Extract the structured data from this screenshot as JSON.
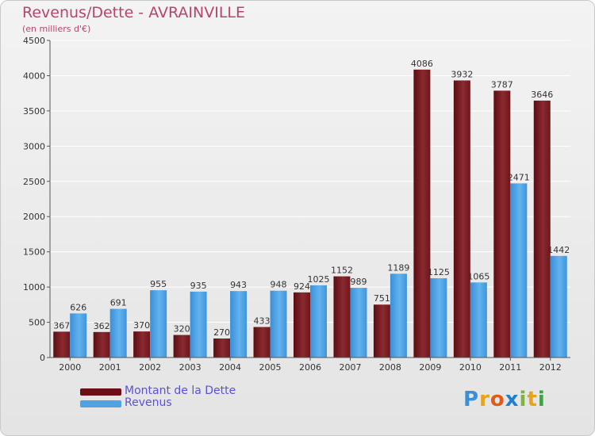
{
  "title": "Revenus/Dette - AVRAINVILLE",
  "subtitle": "(en milliers d'€)",
  "chart_data": {
    "type": "bar",
    "categories": [
      "2000",
      "2001",
      "2002",
      "2003",
      "2004",
      "2005",
      "2006",
      "2007",
      "2008",
      "2009",
      "2010",
      "2011",
      "2012"
    ],
    "series": [
      {
        "name": "Montant de la Dette",
        "color": "#7a1e24",
        "values": [
          367,
          362,
          370,
          320,
          270,
          433,
          924,
          1152,
          751,
          4086,
          3932,
          3787,
          3646
        ]
      },
      {
        "name": "Revenus",
        "color": "#4fa3e3",
        "values": [
          626,
          691,
          955,
          935,
          943,
          948,
          1025,
          989,
          1189,
          1125,
          1065,
          2471,
          1442
        ]
      }
    ],
    "ylim": [
      0,
      4500
    ],
    "yticks": [
      0,
      500,
      1000,
      1500,
      2000,
      2500,
      3000,
      3500,
      4000,
      4500
    ],
    "grid": true,
    "legend_position": "bottom-left"
  },
  "legend": {
    "items": [
      {
        "label": "Montant de la Dette",
        "color": "#6b0f14"
      },
      {
        "label": "Revenus",
        "color": "#4fa3e3"
      }
    ]
  },
  "logo": {
    "letters": [
      "P",
      "r",
      "o",
      "x",
      "i",
      "t",
      "i"
    ],
    "colors": [
      "#3a8fd8",
      "#e8a21c",
      "#e05a1a",
      "#1f7fd0",
      "#7cb342",
      "#e8a21c",
      "#43a047"
    ]
  }
}
